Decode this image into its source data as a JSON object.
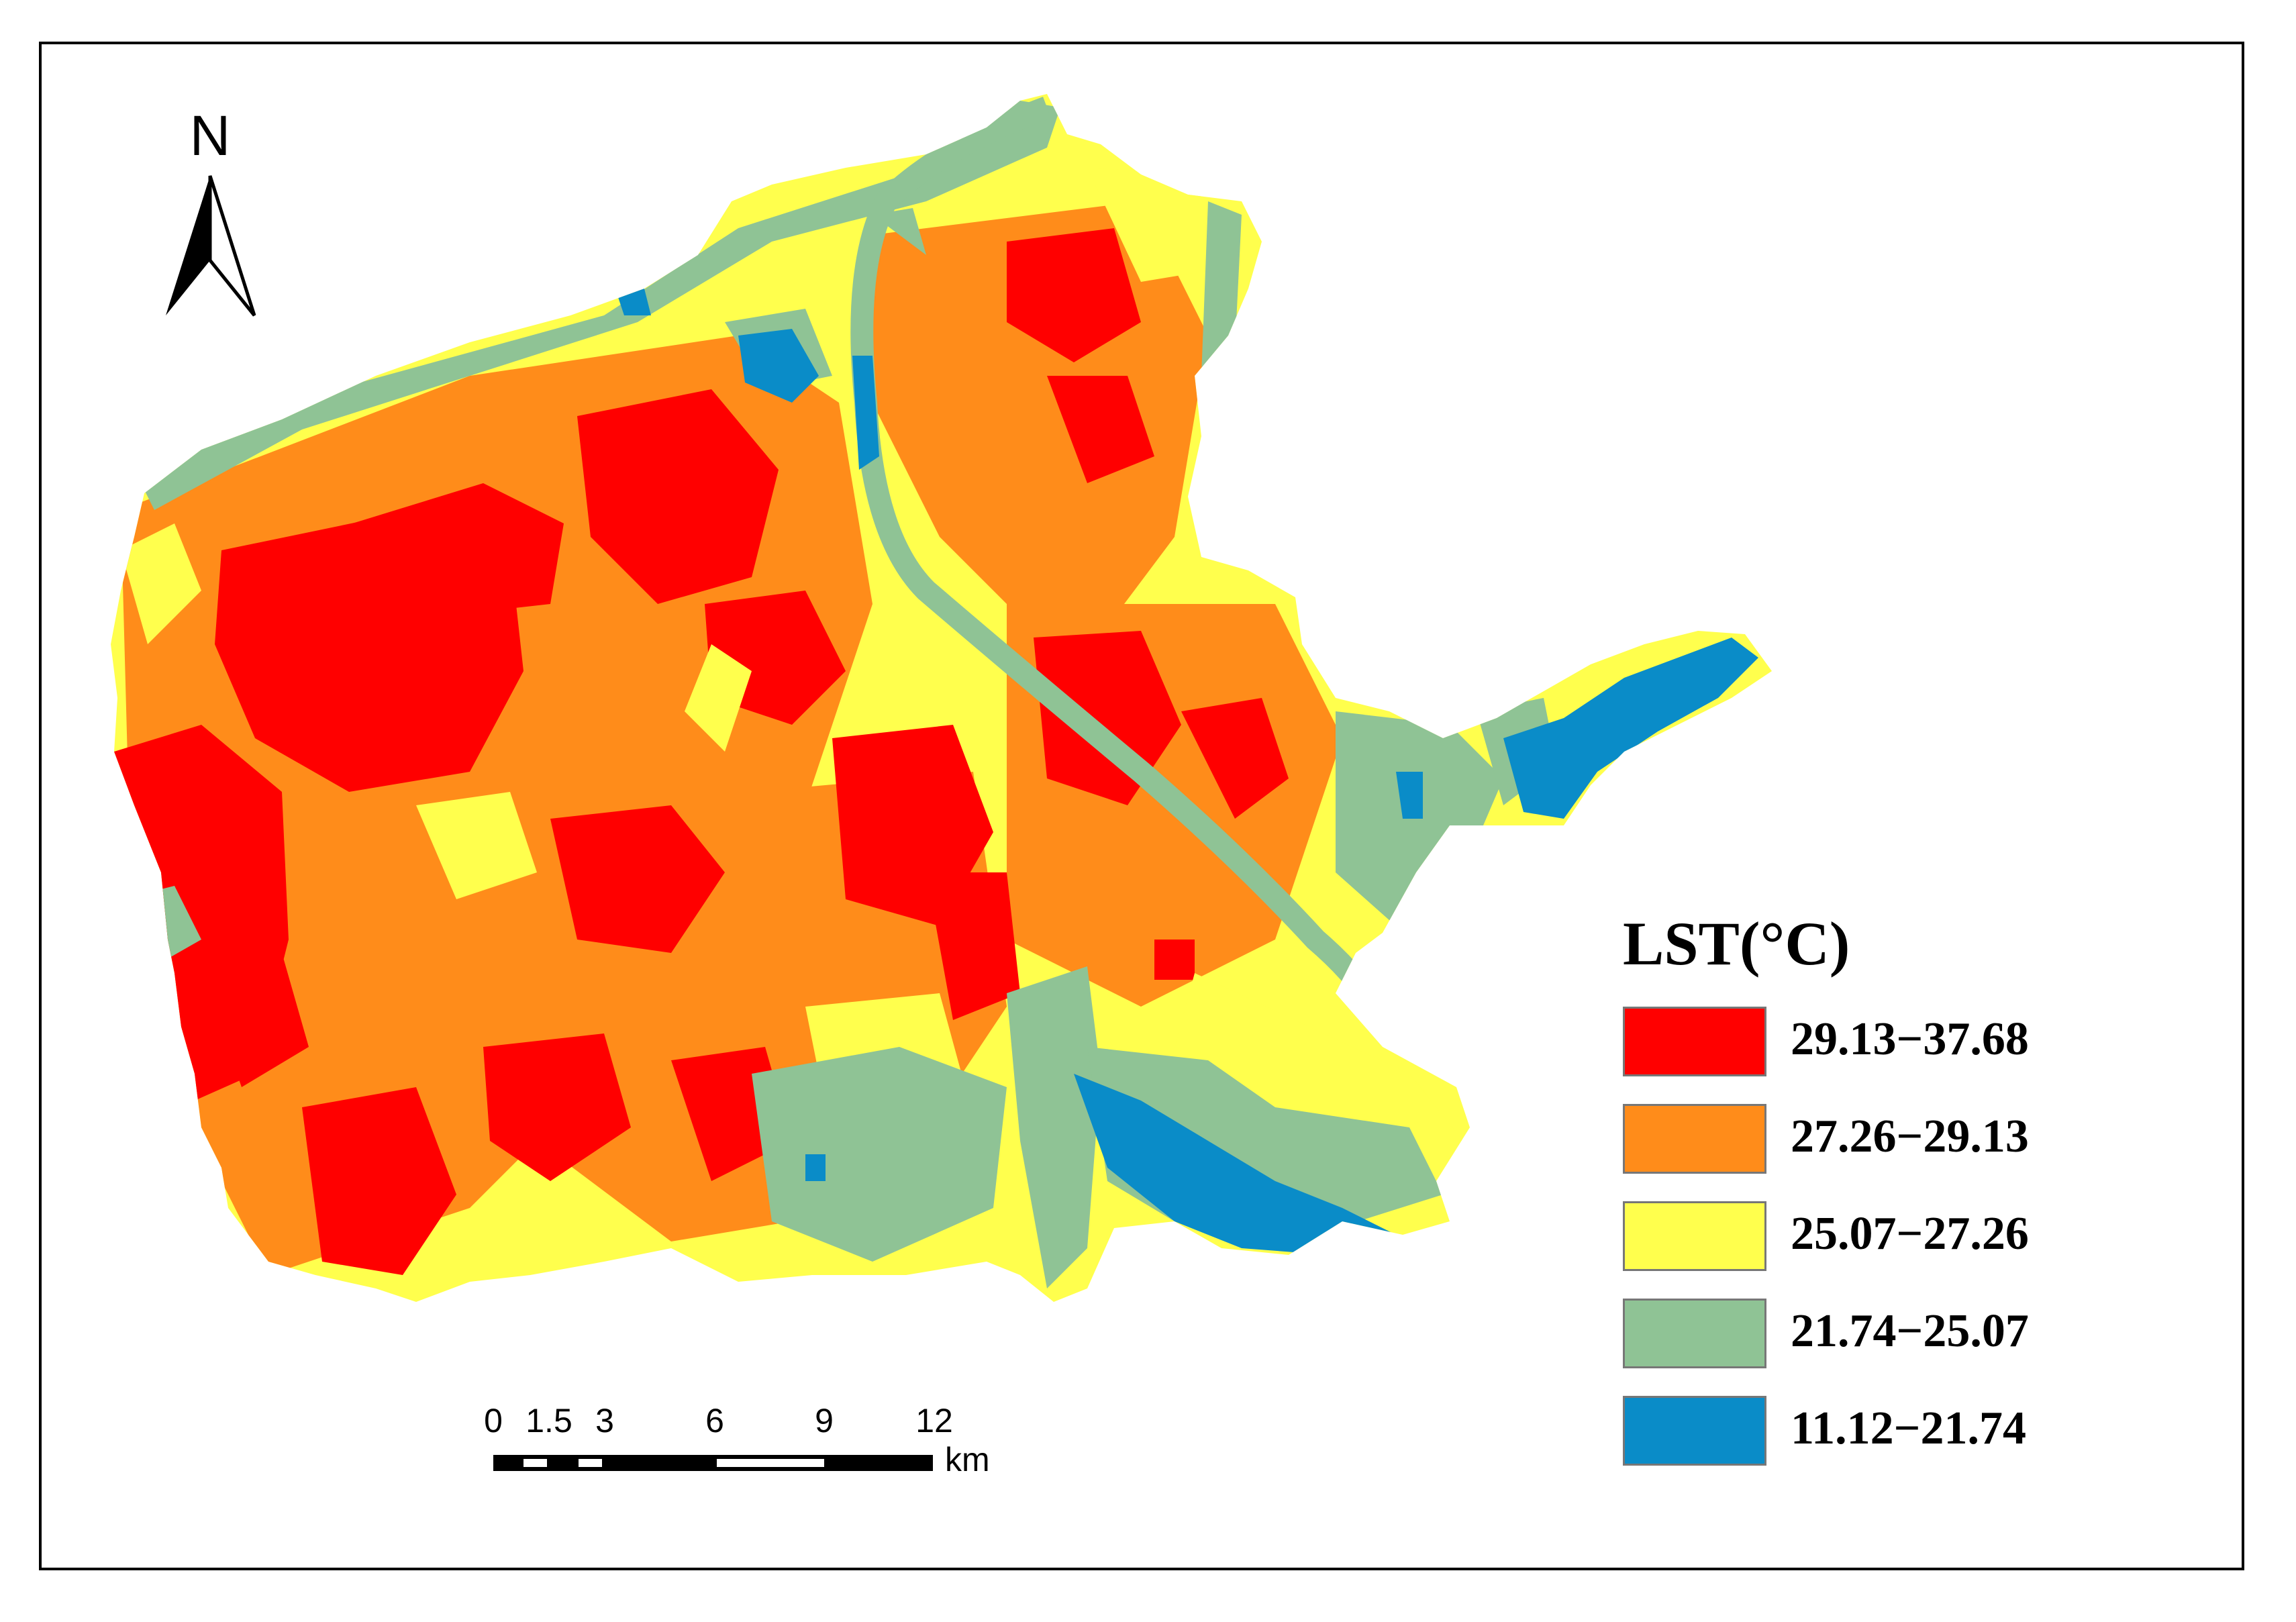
{
  "north_arrow": {
    "letter": "N",
    "icon": "north-arrow-icon"
  },
  "legend": {
    "title": "LST(°C)",
    "classes": [
      {
        "label": "29.13−37.68",
        "color": "#ff0000"
      },
      {
        "label": "27.26−29.13",
        "color": "#ff8c1a"
      },
      {
        "label": "25.07−27.26",
        "color": "#ffff4d"
      },
      {
        "label": "21.74−25.07",
        "color": "#8fc395"
      },
      {
        "label": "11.12−21.74",
        "color": "#0a8cc8"
      }
    ]
  },
  "scale_bar": {
    "ticks": [
      "0",
      "1.5",
      "3",
      "6",
      "9",
      "12"
    ],
    "unit": "km"
  }
}
